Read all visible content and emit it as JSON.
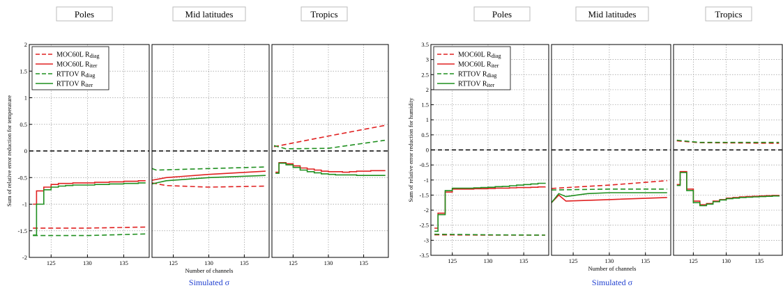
{
  "chart_data": [
    {
      "type": "line",
      "ylabel": "Sum of relative error reduction for temperature",
      "xlabel": "Number of channels",
      "caption": "Simulated σ",
      "ylim": [
        -2,
        2
      ],
      "yticks": [
        -2,
        -1.5,
        -1,
        -0.5,
        0,
        0.5,
        1,
        1.5,
        2
      ],
      "xticks": [
        125,
        130,
        135
      ],
      "xlim": [
        122,
        138.5
      ],
      "grid": true,
      "reference_line": 0,
      "legend": {
        "placement": "top-left",
        "entries": [
          {
            "main": "MOC60L R",
            "sub": "diag",
            "color": "#e02020",
            "dash": true
          },
          {
            "main": "MOC60L R",
            "sub": "iter",
            "color": "#e02020",
            "dash": false
          },
          {
            "main": "RTTOV R",
            "sub": "diag",
            "color": "#1f8f1f",
            "dash": true
          },
          {
            "main": "RTTOV R",
            "sub": "iter",
            "color": "#1f8f1f",
            "dash": false
          }
        ]
      },
      "panels": [
        {
          "title": "Poles",
          "series": [
            {
              "name": "MOC60L Rdiag",
              "color": "#e02020",
              "dash": true,
              "x": [
                122.5,
                130,
                138
              ],
              "y": [
                -1.45,
                -1.45,
                -1.43
              ]
            },
            {
              "name": "MOC60L Riter",
              "color": "#e02020",
              "dash": false,
              "step": true,
              "x": [
                122.5,
                123,
                124,
                125,
                126,
                127,
                128,
                129,
                130,
                131,
                132,
                133,
                134,
                135,
                136,
                137,
                138
              ],
              "y": [
                -1.0,
                -0.75,
                -0.68,
                -0.63,
                -0.61,
                -0.61,
                -0.6,
                -0.6,
                -0.6,
                -0.59,
                -0.59,
                -0.58,
                -0.58,
                -0.57,
                -0.57,
                -0.56,
                -0.56
              ]
            },
            {
              "name": "RTTOV Rdiag",
              "color": "#1f8f1f",
              "dash": true,
              "x": [
                122.5,
                130,
                138
              ],
              "y": [
                -1.59,
                -1.59,
                -1.56
              ]
            },
            {
              "name": "RTTOV Riter",
              "color": "#1f8f1f",
              "dash": false,
              "step": true,
              "x": [
                122.5,
                123,
                124,
                125,
                126,
                127,
                128,
                129,
                130,
                131,
                132,
                133,
                134,
                135,
                136,
                137,
                138
              ],
              "y": [
                -1.58,
                -1.0,
                -0.73,
                -0.68,
                -0.66,
                -0.65,
                -0.64,
                -0.64,
                -0.64,
                -0.63,
                -0.63,
                -0.62,
                -0.62,
                -0.61,
                -0.61,
                -0.6,
                -0.6
              ]
            }
          ]
        },
        {
          "title": "Mid latitudes",
          "series": [
            {
              "name": "MOC60L Rdiag",
              "color": "#e02020",
              "dash": true,
              "x": [
                122,
                124,
                130,
                138
              ],
              "y": [
                -0.6,
                -0.65,
                -0.68,
                -0.66
              ]
            },
            {
              "name": "MOC60L Riter",
              "color": "#e02020",
              "dash": false,
              "x": [
                122,
                124,
                130,
                138
              ],
              "y": [
                -0.55,
                -0.5,
                -0.44,
                -0.38
              ]
            },
            {
              "name": "RTTOV Rdiag",
              "color": "#1f8f1f",
              "dash": true,
              "x": [
                122,
                122.6,
                138
              ],
              "y": [
                -0.33,
                -0.36,
                -0.3
              ]
            },
            {
              "name": "RTTOV Riter",
              "color": "#1f8f1f",
              "dash": false,
              "x": [
                122,
                124,
                130,
                138
              ],
              "y": [
                -0.62,
                -0.56,
                -0.5,
                -0.46
              ]
            }
          ]
        },
        {
          "title": "Tropics",
          "series": [
            {
              "name": "MOC60L Rdiag",
              "color": "#e02020",
              "dash": true,
              "x": [
                122.3,
                130,
                138
              ],
              "y": [
                0.08,
                0.28,
                0.48
              ]
            },
            {
              "name": "MOC60L Riter",
              "color": "#e02020",
              "dash": false,
              "step": true,
              "x": [
                122.5,
                123,
                124,
                125,
                126,
                127,
                128,
                129,
                130,
                131,
                132,
                133,
                134,
                135,
                136,
                137,
                138
              ],
              "y": [
                -0.4,
                -0.22,
                -0.24,
                -0.28,
                -0.32,
                -0.34,
                -0.36,
                -0.38,
                -0.39,
                -0.39,
                -0.4,
                -0.39,
                -0.38,
                -0.38,
                -0.37,
                -0.37,
                -0.36
              ]
            },
            {
              "name": "RTTOV Rdiag",
              "color": "#1f8f1f",
              "dash": true,
              "x": [
                122.3,
                124,
                130,
                138
              ],
              "y": [
                0.1,
                0.04,
                0.05,
                0.2
              ]
            },
            {
              "name": "RTTOV Riter",
              "color": "#1f8f1f",
              "dash": false,
              "step": true,
              "x": [
                122.5,
                123,
                124,
                125,
                126,
                127,
                128,
                129,
                130,
                131,
                132,
                133,
                134,
                135,
                136,
                137,
                138
              ],
              "y": [
                -0.42,
                -0.23,
                -0.26,
                -0.31,
                -0.36,
                -0.39,
                -0.41,
                -0.43,
                -0.44,
                -0.45,
                -0.45,
                -0.45,
                -0.46,
                -0.46,
                -0.46,
                -0.46,
                -0.47
              ]
            }
          ]
        }
      ]
    },
    {
      "type": "line",
      "ylabel": "Sum of relative error reduction for humidity",
      "xlabel": "Number of channels",
      "caption": "Simulated σ",
      "ylim": [
        -3.5,
        3.5
      ],
      "yticks": [
        -3.5,
        -3,
        -2.5,
        -2,
        -1.5,
        -1,
        -0.5,
        0,
        0.5,
        1,
        1.5,
        2,
        2.5,
        3,
        3.5
      ],
      "xticks": [
        125,
        130,
        135
      ],
      "xlim": [
        122,
        138.5
      ],
      "grid": true,
      "reference_line": 0,
      "legend": {
        "placement": "top-left",
        "entries": [
          {
            "main": "MOC60L R",
            "sub": "diag",
            "color": "#e02020",
            "dash": true
          },
          {
            "main": "MOC60L R",
            "sub": "iter",
            "color": "#e02020",
            "dash": false
          },
          {
            "main": "RTTOV R",
            "sub": "diag",
            "color": "#1f8f1f",
            "dash": true
          },
          {
            "main": "RTTOV R",
            "sub": "iter",
            "color": "#1f8f1f",
            "dash": false
          }
        ]
      },
      "panels": [
        {
          "title": "Poles",
          "series": [
            {
              "name": "MOC60L Rdiag",
              "color": "#e02020",
              "dash": true,
              "x": [
                122.5,
                130,
                138
              ],
              "y": [
                -2.82,
                -2.83,
                -2.83
              ]
            },
            {
              "name": "MOC60L Riter",
              "color": "#e02020",
              "dash": false,
              "step": true,
              "x": [
                122.5,
                123,
                124,
                125,
                126,
                127,
                128,
                129,
                130,
                131,
                132,
                133,
                134,
                135,
                136,
                137,
                138
              ],
              "y": [
                -2.6,
                -2.1,
                -1.4,
                -1.3,
                -1.3,
                -1.3,
                -1.29,
                -1.29,
                -1.28,
                -1.27,
                -1.27,
                -1.26,
                -1.25,
                -1.25,
                -1.24,
                -1.23,
                -1.22
              ]
            },
            {
              "name": "RTTOV Rdiag",
              "color": "#1f8f1f",
              "dash": true,
              "x": [
                122.5,
                130,
                138
              ],
              "y": [
                -2.8,
                -2.82,
                -2.83
              ]
            },
            {
              "name": "RTTOV Riter",
              "color": "#1f8f1f",
              "dash": false,
              "step": true,
              "x": [
                122.5,
                123,
                124,
                125,
                126,
                127,
                128,
                129,
                130,
                131,
                132,
                133,
                134,
                135,
                136,
                137,
                138
              ],
              "y": [
                -2.7,
                -2.15,
                -1.35,
                -1.27,
                -1.27,
                -1.27,
                -1.26,
                -1.25,
                -1.24,
                -1.22,
                -1.21,
                -1.19,
                -1.17,
                -1.15,
                -1.13,
                -1.11,
                -1.09
              ]
            }
          ]
        },
        {
          "title": "Mid latitudes",
          "series": [
            {
              "name": "MOC60L Rdiag",
              "color": "#e02020",
              "dash": true,
              "x": [
                122,
                130,
                138
              ],
              "y": [
                -1.28,
                -1.17,
                -1.02
              ]
            },
            {
              "name": "MOC60L Riter",
              "color": "#e02020",
              "dash": false,
              "x": [
                122,
                123,
                124,
                130,
                138
              ],
              "y": [
                -1.75,
                -1.5,
                -1.7,
                -1.65,
                -1.58
              ]
            },
            {
              "name": "RTTOV Rdiag",
              "color": "#1f8f1f",
              "dash": true,
              "x": [
                122,
                130,
                138
              ],
              "y": [
                -1.33,
                -1.3,
                -1.3
              ]
            },
            {
              "name": "RTTOV Riter",
              "color": "#1f8f1f",
              "dash": false,
              "x": [
                122,
                123,
                124,
                127,
                130,
                138
              ],
              "y": [
                -1.75,
                -1.45,
                -1.55,
                -1.45,
                -1.42,
                -1.42
              ]
            }
          ]
        },
        {
          "title": "Tropics",
          "series": [
            {
              "name": "MOC60L Rdiag",
              "color": "#e02020",
              "dash": true,
              "x": [
                122.5,
                126,
                138
              ],
              "y": [
                0.3,
                0.24,
                0.22
              ]
            },
            {
              "name": "MOC60L Riter",
              "color": "#e02020",
              "dash": false,
              "step": true,
              "x": [
                122.5,
                123,
                124,
                125,
                126,
                127,
                128,
                129,
                130,
                131,
                132,
                133,
                134,
                135,
                136,
                137,
                138
              ],
              "y": [
                -1.15,
                -0.72,
                -1.3,
                -1.7,
                -1.82,
                -1.78,
                -1.7,
                -1.65,
                -1.6,
                -1.58,
                -1.56,
                -1.55,
                -1.54,
                -1.53,
                -1.52,
                -1.51,
                -1.5
              ]
            },
            {
              "name": "RTTOV Rdiag",
              "color": "#1f8f1f",
              "dash": true,
              "x": [
                122.5,
                126,
                138
              ],
              "y": [
                0.32,
                0.25,
                0.25
              ]
            },
            {
              "name": "RTTOV Riter",
              "color": "#1f8f1f",
              "dash": false,
              "step": true,
              "x": [
                122.5,
                123,
                124,
                125,
                126,
                127,
                128,
                129,
                130,
                131,
                132,
                133,
                134,
                135,
                136,
                137,
                138
              ],
              "y": [
                -1.18,
                -0.75,
                -1.35,
                -1.75,
                -1.85,
                -1.8,
                -1.72,
                -1.66,
                -1.62,
                -1.6,
                -1.58,
                -1.57,
                -1.56,
                -1.55,
                -1.54,
                -1.53,
                -1.52
              ]
            }
          ]
        }
      ]
    }
  ]
}
